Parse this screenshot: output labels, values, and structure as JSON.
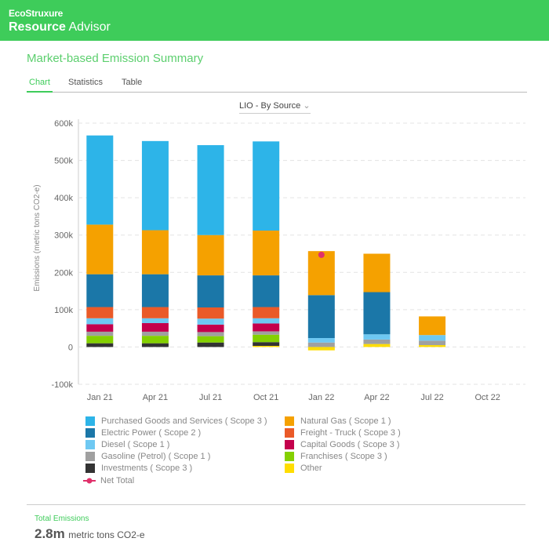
{
  "header": {
    "brand": "EcoStruxure",
    "app_bold": "Resource",
    "app_rest": " Advisor",
    "brand_color": "#3ecc5a"
  },
  "page": {
    "title": "Market-based Emission Summary"
  },
  "tabs": [
    {
      "label": "Chart",
      "active": true
    },
    {
      "label": "Statistics"
    },
    {
      "label": "Table"
    }
  ],
  "dropdown": {
    "value": "LIO -  By Source"
  },
  "footer": {
    "label": "Total Emissions",
    "value": "2.8m",
    "unit": "metric tons CO2-e"
  },
  "chart_data": {
    "type": "bar",
    "stacked": true,
    "ylabel": "Emissions (metric tons CO2-e)",
    "ylim": [
      -100000,
      600000
    ],
    "yticks": [
      {
        "v": -100000,
        "label": "-100k"
      },
      {
        "v": 0,
        "label": "0"
      },
      {
        "v": 100000,
        "label": "100k"
      },
      {
        "v": 200000,
        "label": "200k"
      },
      {
        "v": 300000,
        "label": "300k"
      },
      {
        "v": 400000,
        "label": "400k"
      },
      {
        "v": 500000,
        "label": "500k"
      },
      {
        "v": 600000,
        "label": "600k"
      }
    ],
    "grid": true,
    "legend_position": "bottom",
    "categories": [
      "Jan 21",
      "Apr 21",
      "Jul 21",
      "Oct 21",
      "Jan 22",
      "Apr 22",
      "Jul 22",
      "Oct 22"
    ],
    "series": [
      {
        "name": "Other",
        "color": "#ffdd00",
        "values": [
          0,
          0,
          0,
          3000,
          -9000,
          8000,
          5000,
          0
        ]
      },
      {
        "name": "Investments ( Scope 3 )",
        "color": "#333333",
        "values": [
          10000,
          10000,
          12000,
          10000,
          0,
          0,
          0,
          0
        ]
      },
      {
        "name": "Franchises ( Scope 3 )",
        "color": "#84d000",
        "values": [
          20000,
          20000,
          17000,
          20000,
          0,
          0,
          0,
          0
        ]
      },
      {
        "name": "Gasoline (Petrol) ( Scope 1 )",
        "color": "#a0a0a0",
        "values": [
          11000,
          11000,
          11000,
          9000,
          12000,
          12000,
          12000,
          0
        ]
      },
      {
        "name": "Capital Goods ( Scope 3 )",
        "color": "#c4004c",
        "values": [
          20000,
          23000,
          20000,
          21000,
          0,
          0,
          0,
          0
        ]
      },
      {
        "name": "Diesel ( Scope 1 )",
        "color": "#6ec8f2",
        "values": [
          16000,
          13000,
          16000,
          14000,
          12000,
          14000,
          15000,
          0
        ]
      },
      {
        "name": "Freight - Truck ( Scope 3 )",
        "color": "#ea5a28",
        "values": [
          30000,
          30000,
          30000,
          30000,
          0,
          0,
          0,
          0
        ]
      },
      {
        "name": "Electric Power ( Scope 2 )",
        "color": "#1b77a8",
        "values": [
          88000,
          88000,
          86000,
          85000,
          115000,
          113000,
          0,
          0
        ]
      },
      {
        "name": "Natural Gas ( Scope 1 )",
        "color": "#f5a100",
        "values": [
          133000,
          118000,
          108000,
          120000,
          118000,
          103000,
          50000,
          0
        ]
      },
      {
        "name": "Purchased Goods and Services ( Scope 3 )",
        "color": "#2db4e8",
        "values": [
          239000,
          239000,
          241000,
          239000,
          0,
          0,
          0,
          0
        ]
      }
    ],
    "net_total": {
      "name": "Net Total",
      "color": "#e0306a",
      "points": [
        {
          "category": "Jan 22",
          "value": 247000
        }
      ]
    },
    "legend_order": [
      [
        "Purchased Goods and Services ( Scope 3 )",
        "Natural Gas ( Scope 1 )"
      ],
      [
        "Electric Power ( Scope 2 )",
        "Freight - Truck ( Scope 3 )"
      ],
      [
        "Diesel ( Scope 1 )",
        "Capital Goods ( Scope 3 )"
      ],
      [
        "Gasoline (Petrol) ( Scope 1 )",
        "Franchises ( Scope 3 )"
      ],
      [
        "Investments ( Scope 3 )",
        "Other"
      ]
    ]
  }
}
